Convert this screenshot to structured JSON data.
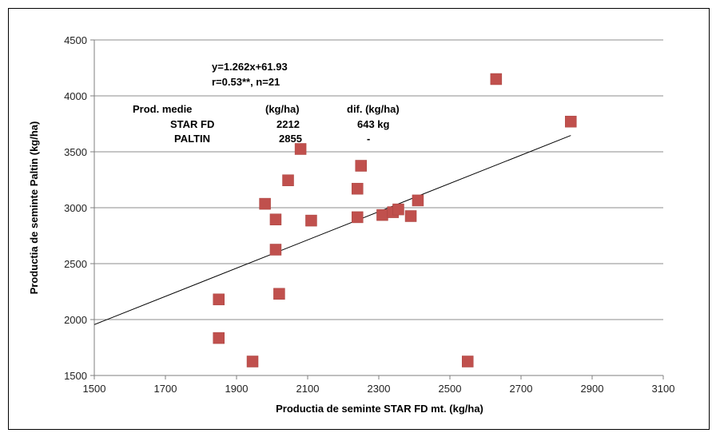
{
  "chart_data": {
    "type": "scatter",
    "xlabel": "Productia de seminte  STAR FD  mt. (kg/ha)",
    "ylabel": "Productia de seminte  Paltin (kg/ha)",
    "xlim": [
      1500,
      3100
    ],
    "ylim": [
      1500,
      4500
    ],
    "xticks": [
      "1500",
      "1700",
      "1900",
      "2100",
      "2300",
      "2500",
      "2700",
      "2900",
      "3100"
    ],
    "yticks": [
      "1500",
      "2000",
      "2500",
      "3000",
      "3500",
      "4000",
      "4500"
    ],
    "grid": "horizontal",
    "marker_color": "#c0504d",
    "points": [
      {
        "x": 1850,
        "y": 2180
      },
      {
        "x": 1850,
        "y": 1835
      },
      {
        "x": 1945,
        "y": 1625
      },
      {
        "x": 1980,
        "y": 3035
      },
      {
        "x": 2010,
        "y": 2895
      },
      {
        "x": 2010,
        "y": 2625
      },
      {
        "x": 2020,
        "y": 2230
      },
      {
        "x": 2045,
        "y": 3245
      },
      {
        "x": 2080,
        "y": 3525
      },
      {
        "x": 2110,
        "y": 2885
      },
      {
        "x": 2240,
        "y": 3170
      },
      {
        "x": 2240,
        "y": 2915
      },
      {
        "x": 2250,
        "y": 3375
      },
      {
        "x": 2310,
        "y": 2935
      },
      {
        "x": 2340,
        "y": 2960
      },
      {
        "x": 2355,
        "y": 2985
      },
      {
        "x": 2390,
        "y": 2925
      },
      {
        "x": 2410,
        "y": 3065
      },
      {
        "x": 2550,
        "y": 1625
      },
      {
        "x": 2630,
        "y": 4150
      },
      {
        "x": 2840,
        "y": 3770
      }
    ],
    "trendline": {
      "slope": 1.262,
      "intercept": 61.93,
      "x_range": [
        1500,
        2840
      ]
    },
    "annotations": {
      "equation": "y=1.262x+61.93",
      "stats": "r=0.53**,  n=21",
      "prod_header": "Prod. medie",
      "unit_header": "(kg/ha)",
      "dif_header": "dif. (kg/ha)",
      "row1_name": "STAR FD",
      "row1_value": "2212",
      "row1_dif": "643 kg",
      "row2_name": "PALTIN",
      "row2_value": "2855",
      "row2_dif": "-"
    }
  }
}
